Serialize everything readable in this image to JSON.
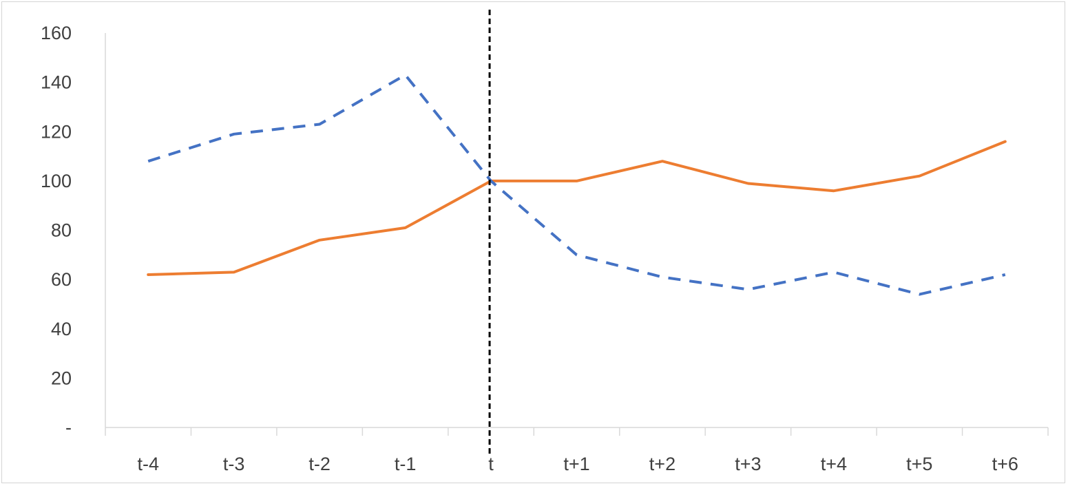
{
  "chart_data": {
    "type": "line",
    "categories": [
      "t-4",
      "t-3",
      "t-2",
      "t-1",
      "t",
      "t+1",
      "t+2",
      "t+3",
      "t+4",
      "t+5",
      "t+6"
    ],
    "series": [
      {
        "values": [
          62,
          63,
          76,
          81,
          100,
          100,
          108,
          99,
          96,
          102,
          116
        ],
        "color": "#ED7D31",
        "style": "solid"
      },
      {
        "values": [
          108,
          119,
          123,
          143,
          100,
          70,
          61,
          56,
          63,
          54,
          62
        ],
        "color": "#4472C4",
        "style": "dashed"
      }
    ],
    "y_tick_labels": [
      "-",
      "20",
      "40",
      "60",
      "80",
      "100",
      "120",
      "140",
      "160"
    ],
    "ylim": [
      0,
      160
    ],
    "marker_category": "t",
    "marker_color": "#000000",
    "grid": false,
    "title": "",
    "xlabel": "",
    "ylabel": ""
  }
}
